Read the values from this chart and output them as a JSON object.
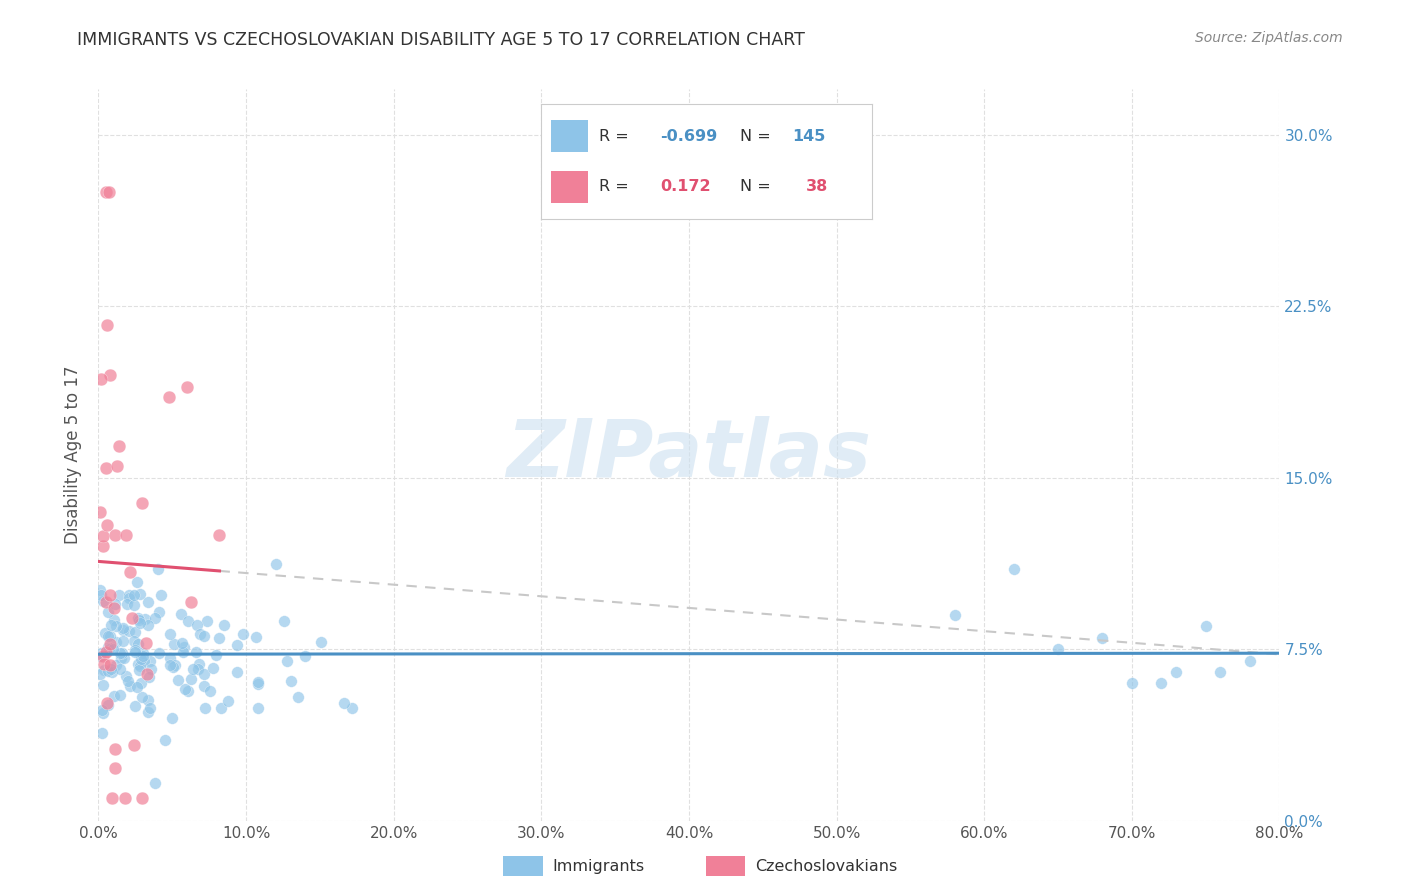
{
  "title": "IMMIGRANTS VS CZECHOSLOVAKIAN DISABILITY AGE 5 TO 17 CORRELATION CHART",
  "source": "Source: ZipAtlas.com",
  "ylabel": "Disability Age 5 to 17",
  "yticks": [
    "0.0%",
    "7.5%",
    "15.0%",
    "22.5%",
    "30.0%"
  ],
  "ytick_vals": [
    0.0,
    0.075,
    0.15,
    0.225,
    0.3
  ],
  "xlim": [
    0.0,
    0.8
  ],
  "ylim": [
    0.0,
    0.32
  ],
  "immigrants_R": -0.699,
  "immigrants_N": 145,
  "czech_R": 0.172,
  "czech_N": 38,
  "immigrants_color": "#8ec4e8",
  "czech_color": "#f08098",
  "trendline_immigrants_color": "#4a90c4",
  "trendline_czech_color": "#e05070",
  "trendline_czech_dash_color": "#c8c8c8",
  "background_color": "#ffffff",
  "legend_box_color": "#ffffff",
  "legend_border_color": "#cccccc",
  "watermark_color": "#cce0f0",
  "title_color": "#333333",
  "source_color": "#888888",
  "ylabel_color": "#555555",
  "tick_color": "#555555",
  "grid_color": "#e0e0e0"
}
